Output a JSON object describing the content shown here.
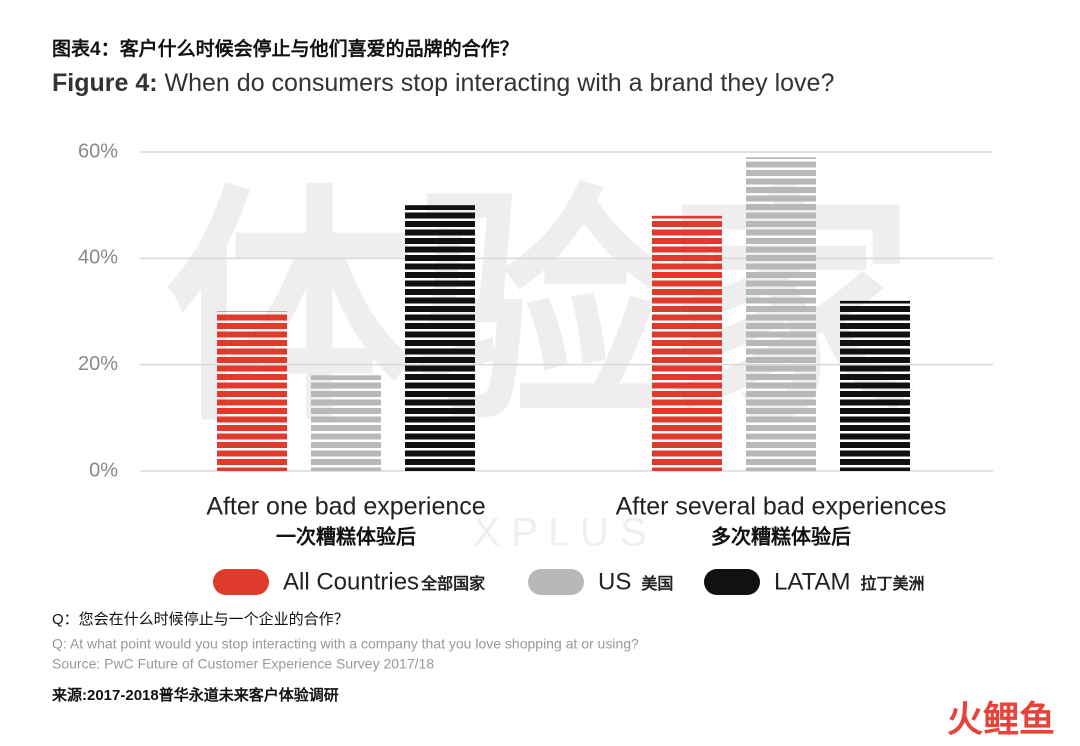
{
  "chart_data": {
    "type": "bar",
    "title_cn": "图表4：客户什么时候会停止与他们喜爱的品牌的合作？",
    "title_prefix": "Figure 4:",
    "title": "When do consumers stop interacting with a brand they love?",
    "categories": [
      "After one bad experience",
      "After several bad experiences"
    ],
    "categories_cn": [
      "一次糟糕体验后",
      "多次糟糕体验后"
    ],
    "series": [
      {
        "name": "All Countries",
        "name_cn": "全部国家",
        "color": "#e03a2c",
        "values": [
          30,
          48
        ]
      },
      {
        "name": "US",
        "name_cn": "美国",
        "color": "#b8b8b8",
        "values": [
          18,
          59
        ]
      },
      {
        "name": "LATAM",
        "name_cn": "拉丁美洲",
        "color": "#111111",
        "values": [
          50,
          32
        ]
      }
    ],
    "ylim": [
      0,
      60
    ],
    "yticks": [
      {
        "value": 0,
        "label": "0%"
      },
      {
        "value": 20,
        "label": "20%"
      },
      {
        "value": 40,
        "label": "40%"
      },
      {
        "value": 60,
        "label": "60%"
      }
    ],
    "grid": true,
    "watermark": "体验家",
    "watermark_sub": "X P L U S",
    "note_cn": "Q：您会在什么时候停止与一个企业的合作？",
    "note_en": "Q: At what point would you stop interacting with a company that you love shopping at or using?",
    "source_en": "Source: PwC Future of Customer Experience Survey 2017/18",
    "source_cn": "来源:2017-2018普华永道未来客户体验调研",
    "logo": "火鲤鱼"
  }
}
